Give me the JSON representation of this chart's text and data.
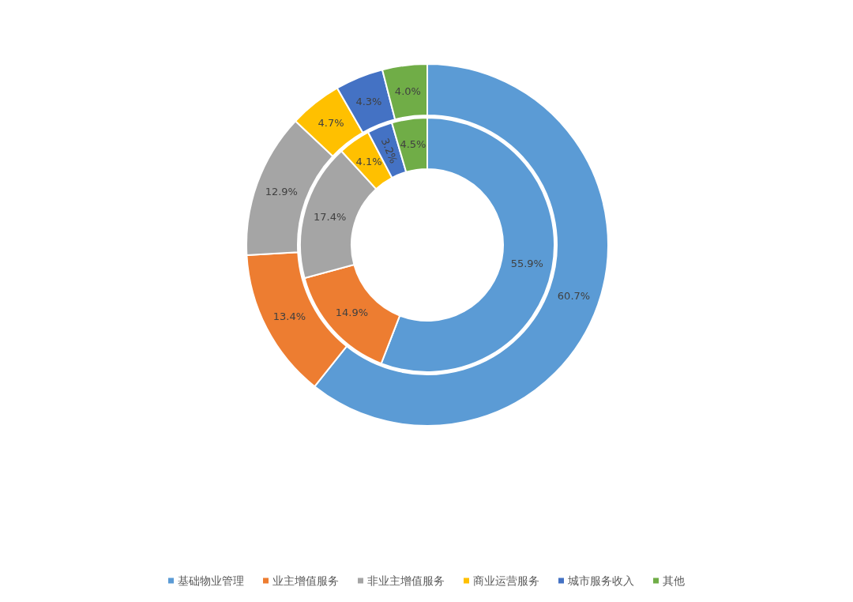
{
  "chart_data": {
    "type": "donut",
    "categories": [
      "基础物业管理",
      "业主增值服务",
      "非业主增值服务",
      "商业运营服务",
      "城市服务收入",
      "其他"
    ],
    "colors": [
      "#5b9bd5",
      "#ed7d31",
      "#a5a5a5",
      "#ffc000",
      "#4472c4",
      "#70ad47"
    ],
    "series": [
      {
        "values": [
          60.7,
          13.4,
          12.9,
          4.7,
          4.3,
          4.0
        ],
        "value_labels": [
          "60.7%",
          "13.4%",
          "12.9%",
          "4.7%",
          "4.3%",
          "4.0%"
        ]
      },
      {
        "values": [
          55.9,
          14.9,
          17.4,
          4.1,
          3.2,
          4.5
        ],
        "value_labels": [
          "55.9%",
          "14.9%",
          "17.4%",
          "4.1%",
          "3.2%",
          "4.5%"
        ]
      }
    ],
    "legend": "bottom"
  }
}
